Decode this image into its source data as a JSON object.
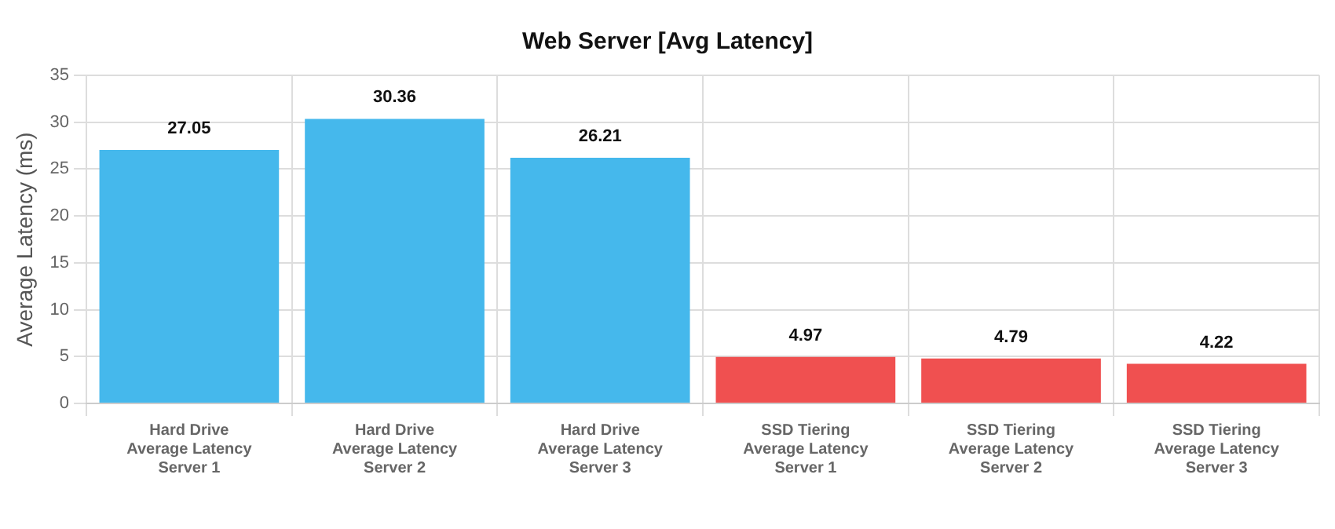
{
  "chart_data": {
    "type": "bar",
    "title": "Web Server [Avg Latency]",
    "ylabel": "Average Latency (ms)",
    "categories": [
      "Hard Drive\nAverage Latency\nServer 1",
      "Hard Drive\nAverage Latency\nServer 2",
      "Hard Drive\nAverage Latency\nServer 3",
      "SSD Tiering\nAverage Latency\nServer 1",
      "SSD Tiering\nAverage Latency\nServer 2",
      "SSD Tiering\nAverage Latency\nServer 3"
    ],
    "values": [
      27.05,
      30.36,
      26.21,
      4.97,
      4.79,
      4.22
    ],
    "colors": [
      "#45b8ec",
      "#45b8ec",
      "#45b8ec",
      "#f05050",
      "#f05050",
      "#f05050"
    ],
    "ylim": [
      0,
      35
    ],
    "yticks": [
      0,
      5,
      10,
      15,
      20,
      25,
      30,
      35
    ],
    "grid": true,
    "legend": false,
    "data_labels": true
  }
}
